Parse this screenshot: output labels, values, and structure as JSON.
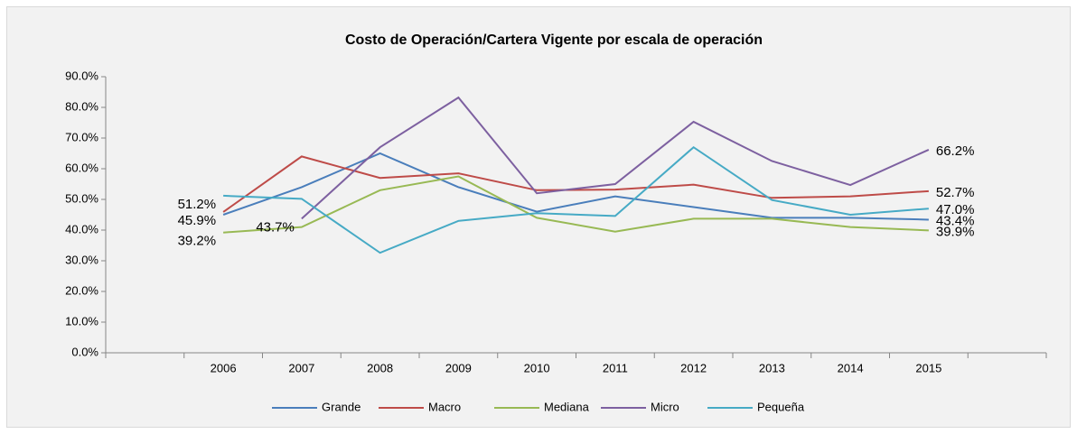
{
  "chart_data": {
    "type": "line",
    "title": "Costo de Operación/Cartera Vigente por escala de operación",
    "categories": [
      null,
      "2006",
      "2007",
      "2008",
      "2009",
      "2010",
      "2011",
      "2012",
      "2013",
      "2014",
      "2015",
      null
    ],
    "series": [
      {
        "name": "Grande",
        "color": "#4a7ebb",
        "values": [
          null,
          45.0,
          54.0,
          65.0,
          54.0,
          46.0,
          51.0,
          47.5,
          44.0,
          44.0,
          43.4,
          null
        ],
        "value_labels": [
          null,
          null,
          null,
          null,
          null,
          null,
          null,
          null,
          null,
          null,
          "43.4%",
          null
        ]
      },
      {
        "name": "Macro",
        "color": "#be4b48",
        "values": [
          null,
          45.9,
          64.0,
          57.0,
          58.5,
          53.0,
          53.2,
          54.8,
          50.5,
          51.0,
          52.7,
          null
        ],
        "value_labels": [
          null,
          "45.9%",
          null,
          null,
          null,
          null,
          null,
          null,
          null,
          null,
          "52.7%",
          null
        ]
      },
      {
        "name": "Mediana",
        "color": "#98b954",
        "values": [
          null,
          39.2,
          41.0,
          53.0,
          57.5,
          44.0,
          39.5,
          43.7,
          43.7,
          41.0,
          39.9,
          null
        ],
        "value_labels": [
          null,
          "39.2%",
          null,
          null,
          null,
          null,
          null,
          null,
          null,
          null,
          "39.9%",
          null
        ]
      },
      {
        "name": "Micro",
        "color": "#7d60a0",
        "values": [
          null,
          null,
          43.7,
          67.0,
          83.2,
          52.0,
          55.0,
          75.3,
          62.5,
          54.7,
          66.2,
          null
        ],
        "value_labels": [
          null,
          null,
          "43.7%",
          null,
          null,
          null,
          null,
          null,
          null,
          null,
          "66.2%",
          null
        ]
      },
      {
        "name": "Pequeña",
        "color": "#46aac5",
        "values": [
          null,
          51.2,
          50.2,
          32.6,
          43.0,
          45.5,
          44.6,
          67.0,
          49.8,
          45.0,
          47.0,
          null
        ],
        "value_labels": [
          null,
          "51.2%",
          null,
          null,
          null,
          null,
          null,
          null,
          null,
          null,
          "47.0%",
          null
        ]
      }
    ],
    "ylim": [
      0,
      90
    ],
    "yticks": [
      {
        "value": 0,
        "label": "0.0%"
      },
      {
        "value": 10,
        "label": "10.0%"
      },
      {
        "value": 20,
        "label": "20.0%"
      },
      {
        "value": 30,
        "label": "30.0%"
      },
      {
        "value": 40,
        "label": "40.0%"
      },
      {
        "value": 50,
        "label": "50.0%"
      },
      {
        "value": 60,
        "label": "60.0%"
      },
      {
        "value": 70,
        "label": "70.0%"
      },
      {
        "value": 80,
        "label": "80.0%"
      },
      {
        "value": 90,
        "label": "90.0%"
      }
    ],
    "legend": "bottom"
  }
}
